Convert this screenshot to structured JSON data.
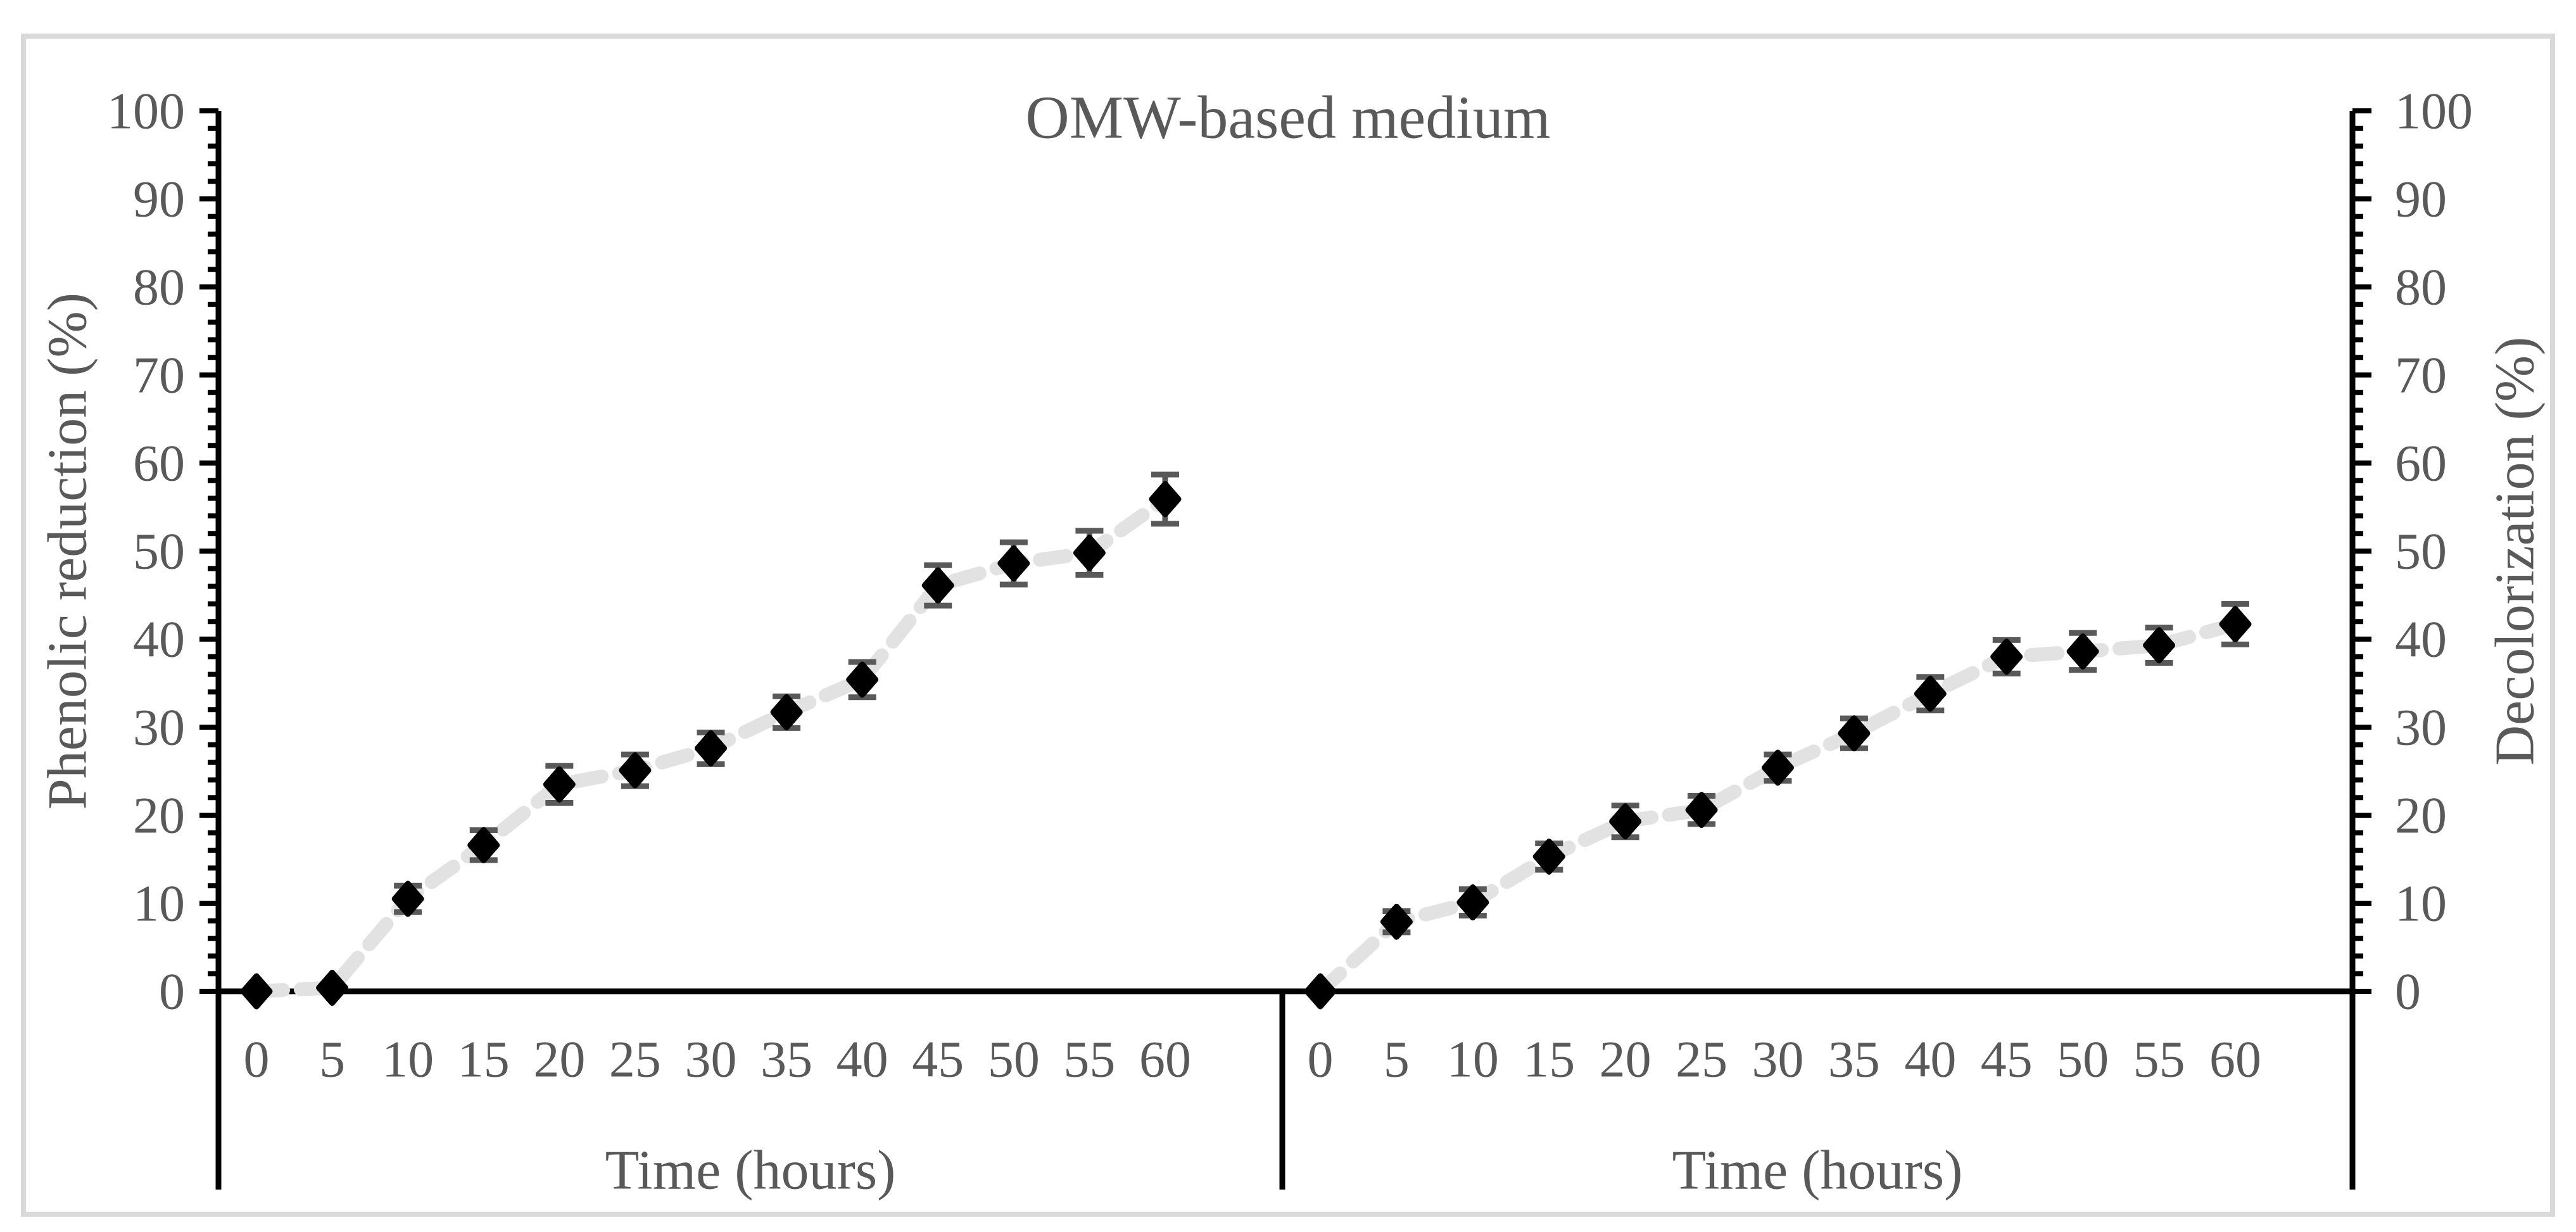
{
  "figure": {
    "title": "OMW-based medium",
    "frame_color": "#d9d9d9",
    "background": "#ffffff"
  },
  "colors": {
    "text_gray": "#595959",
    "axis_black": "#000000",
    "marker_black": "#000000",
    "error_bar_gray": "#595959",
    "dash_line_gray": "#e2e2e2"
  },
  "chart_data": [
    {
      "type": "scatter",
      "panel": "left",
      "title": "OMW-based medium",
      "xlabel": "Time (hours)",
      "ylabel": "Phenolic reduction (%)",
      "ylabel_side": "left",
      "xlim": [
        0,
        60
      ],
      "ylim": [
        0,
        100
      ],
      "x_tick_step": 5,
      "y_tick_step": 10,
      "y_minor_tick_step": 2,
      "grid": false,
      "legend": "none",
      "marker": "black-diamond",
      "line_style": "dashed-light-gray",
      "x": [
        0,
        5,
        10,
        15,
        20,
        25,
        30,
        35,
        40,
        45,
        50,
        55,
        60
      ],
      "y": [
        0,
        0.4,
        10.5,
        16.6,
        23.5,
        25.1,
        27.6,
        31.7,
        35.4,
        46.1,
        48.6,
        49.8,
        55.9
      ],
      "yerr": [
        0,
        0,
        1.5,
        1.7,
        2.1,
        1.8,
        1.8,
        1.8,
        2.0,
        2.3,
        2.4,
        2.5,
        2.8
      ],
      "x_tick_labels": [
        "0",
        "5",
        "10",
        "15",
        "20",
        "25",
        "30",
        "35",
        "40",
        "45",
        "50",
        "55",
        "60"
      ],
      "y_tick_labels": [
        "0",
        "10",
        "20",
        "30",
        "40",
        "50",
        "60",
        "70",
        "80",
        "90",
        "100"
      ]
    },
    {
      "type": "scatter",
      "panel": "right",
      "title": "OMW-based medium",
      "xlabel": "Time (hours)",
      "ylabel": "Decolorization (%)",
      "ylabel_side": "right",
      "xlim": [
        0,
        60
      ],
      "ylim": [
        0,
        100
      ],
      "x_tick_step": 5,
      "y_tick_step": 10,
      "y_minor_tick_step": 2,
      "grid": false,
      "legend": "none",
      "marker": "black-diamond",
      "line_style": "dashed-light-gray",
      "x": [
        0,
        5,
        10,
        15,
        20,
        25,
        30,
        35,
        40,
        45,
        50,
        55,
        60
      ],
      "y": [
        0,
        7.9,
        10.1,
        15.3,
        19.3,
        20.6,
        25.4,
        29.3,
        33.8,
        38.0,
        38.6,
        39.3,
        41.7
      ],
      "yerr": [
        0,
        1.2,
        1.5,
        1.5,
        1.8,
        1.6,
        1.5,
        1.7,
        1.9,
        1.9,
        2.1,
        2.0,
        2.3
      ],
      "x_tick_labels": [
        "0",
        "5",
        "10",
        "15",
        "20",
        "25",
        "30",
        "35",
        "40",
        "45",
        "50",
        "55",
        "60"
      ],
      "y_tick_labels": [
        "0",
        "10",
        "20",
        "30",
        "40",
        "50",
        "60",
        "70",
        "80",
        "90",
        "100"
      ]
    }
  ]
}
